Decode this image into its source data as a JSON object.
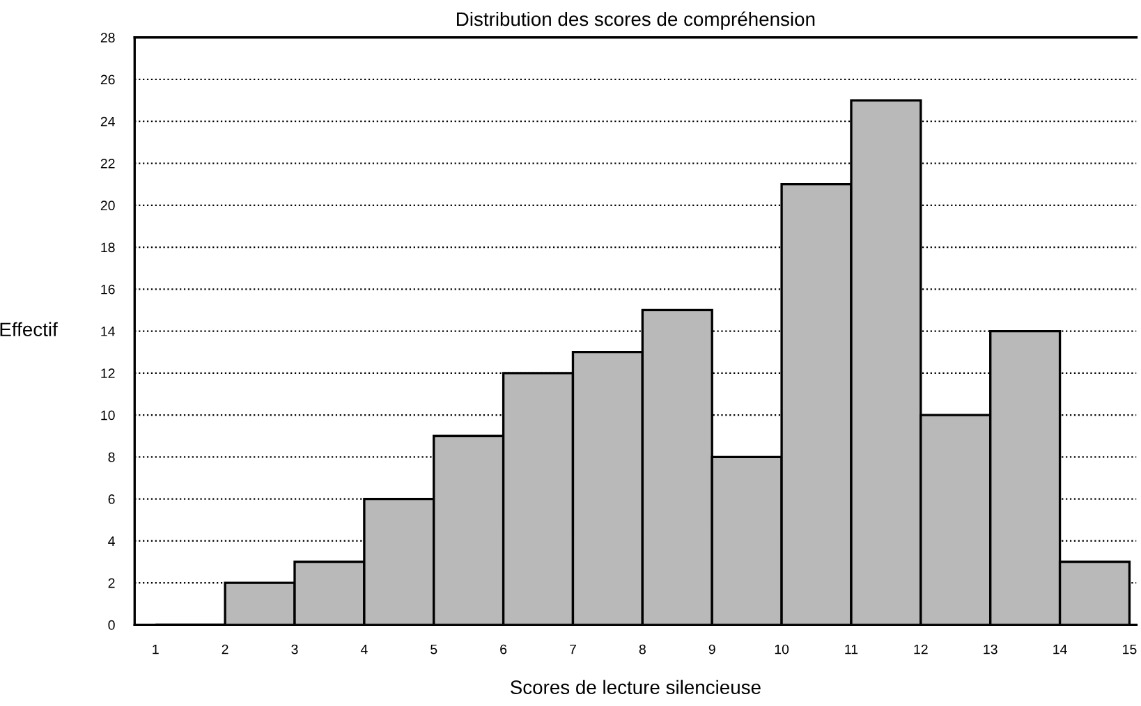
{
  "chart_data": {
    "type": "histogram",
    "title": "Distribution des scores de compréhension",
    "xlabel": "Scores de lecture silencieuse",
    "ylabel": "Effectif",
    "bins": [
      1,
      2,
      3,
      4,
      5,
      6,
      7,
      8,
      9,
      10,
      11,
      12,
      13,
      14,
      15
    ],
    "values": [
      0,
      2,
      3,
      6,
      9,
      12,
      13,
      15,
      8,
      21,
      25,
      10,
      14,
      3
    ],
    "color": "#b9b9b9",
    "xlim": [
      0.7,
      15.1
    ],
    "xticks": [
      1,
      2,
      3,
      4,
      5,
      6,
      7,
      8,
      9,
      10,
      11,
      12,
      13,
      14,
      15
    ],
    "ylim": [
      0,
      28
    ],
    "yticks": [
      0,
      2,
      4,
      6,
      8,
      10,
      12,
      14,
      16,
      18,
      20,
      22,
      24,
      26,
      28
    ],
    "grid": "y",
    "line_style": "dotted"
  }
}
